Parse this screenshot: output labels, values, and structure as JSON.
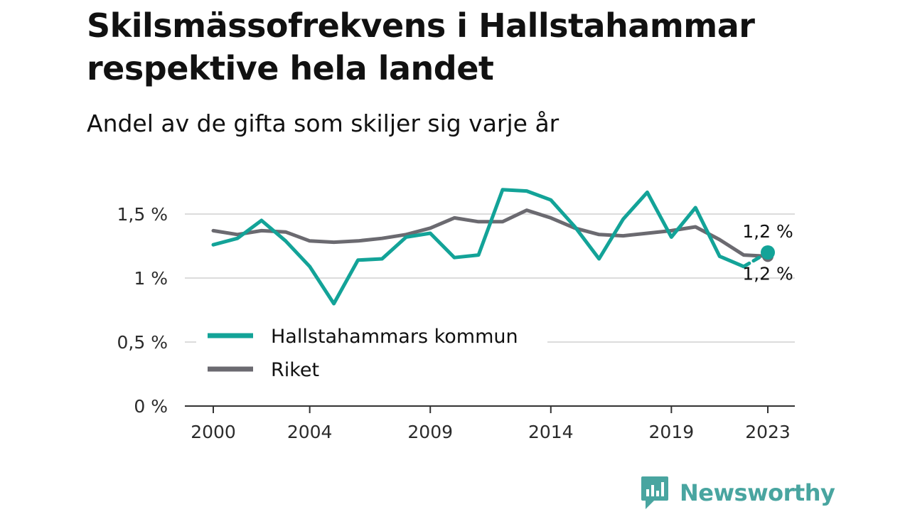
{
  "title": "Skilsmässofrekvens i Hallstahammar respektive hela landet",
  "subtitle": "Andel av de gifta som skiljer sig varje år",
  "brand": {
    "name": "Newsworthy",
    "icon": "newsworthy-logo-icon",
    "color": "#49a5a0"
  },
  "chart_data": {
    "type": "line",
    "title": "Skilsmässofrekvens i Hallstahammar respektive hela landet",
    "subtitle": "Andel av de gifta som skiljer sig varje år",
    "xlabel": "",
    "ylabel": "",
    "x": [
      2000,
      2001,
      2002,
      2003,
      2004,
      2005,
      2006,
      2007,
      2008,
      2009,
      2010,
      2011,
      2012,
      2013,
      2014,
      2015,
      2016,
      2017,
      2018,
      2019,
      2020,
      2021,
      2022,
      2023
    ],
    "xlim": [
      2000,
      2023
    ],
    "ylim": [
      0,
      1.7
    ],
    "x_ticks": [
      {
        "value": 2000,
        "label": "2000"
      },
      {
        "value": 2004,
        "label": "2004"
      },
      {
        "value": 2009,
        "label": "2009"
      },
      {
        "value": 2014,
        "label": "2014"
      },
      {
        "value": 2019,
        "label": "2019"
      },
      {
        "value": 2023,
        "label": "2023"
      }
    ],
    "y_ticks": [
      {
        "value": 0,
        "label": "0 %"
      },
      {
        "value": 0.5,
        "label": "0,5 %"
      },
      {
        "value": 1,
        "label": "1 %"
      },
      {
        "value": 1.5,
        "label": "1,5 %"
      }
    ],
    "grid": true,
    "legend": {
      "position": "bottom-left"
    },
    "series": [
      {
        "name": "Hallstahammars kommun",
        "color": "#13a398",
        "values": [
          1.26,
          1.31,
          1.45,
          1.29,
          1.09,
          0.8,
          1.14,
          1.15,
          1.32,
          1.35,
          1.16,
          1.18,
          1.69,
          1.68,
          1.61,
          1.4,
          1.15,
          1.46,
          1.67,
          1.32,
          1.55,
          1.17,
          1.09,
          1.2
        ],
        "end_label": "1,2 %"
      },
      {
        "name": "Riket",
        "color": "#6b6a70",
        "values": [
          1.37,
          1.34,
          1.37,
          1.36,
          1.29,
          1.28,
          1.29,
          1.31,
          1.34,
          1.39,
          1.47,
          1.44,
          1.44,
          1.53,
          1.47,
          1.39,
          1.34,
          1.33,
          1.35,
          1.37,
          1.4,
          1.3,
          1.18,
          1.17
        ],
        "end_label": "1,2 %"
      }
    ]
  }
}
